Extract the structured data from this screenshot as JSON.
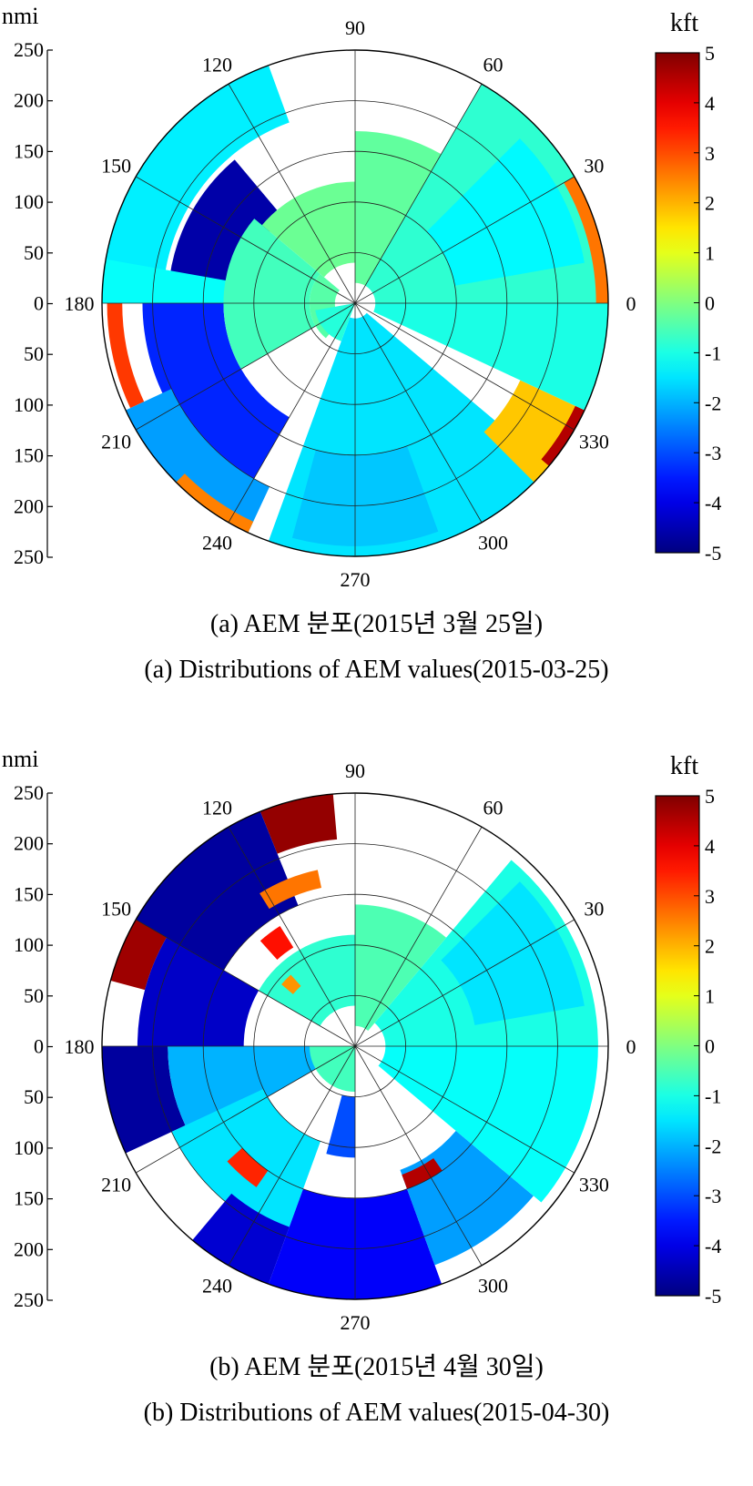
{
  "chart_data": [
    {
      "type": "heatmap",
      "subtype": "polar",
      "title": "",
      "radial_unit": "nmi",
      "radial_range": [
        0,
        250
      ],
      "radial_ticks": [
        "250",
        "200",
        "150",
        "100",
        "50",
        "0",
        "50",
        "100",
        "150",
        "200",
        "250"
      ],
      "radial_rings": [
        50,
        100,
        150,
        200,
        250
      ],
      "angle_labels": [
        "90",
        "60",
        "30",
        "0",
        "330",
        "300",
        "270",
        "240",
        "210",
        "180",
        "150",
        "120"
      ],
      "angle_values": [
        90,
        60,
        30,
        0,
        330,
        300,
        270,
        240,
        210,
        180,
        150,
        120
      ],
      "colorbar": {
        "label": "kft",
        "range": [
          -5,
          5
        ],
        "ticks": [
          "5",
          "4",
          "3",
          "2",
          "1",
          "0",
          "-1",
          "-2",
          "-3",
          "-4",
          "-5"
        ],
        "colormap": "jet"
      },
      "caption_korean": "(a) AEM 분포(2015년 3월 25일)",
      "caption_english": "(a) Distributions of AEM values(2015-03-25)",
      "sectors": [
        {
          "a0": 110,
          "a1": 178,
          "r0": 190,
          "r1": 250,
          "value": -1.4
        },
        {
          "a0": 130,
          "a1": 172,
          "r0": 110,
          "r1": 185,
          "value": -4.6
        },
        {
          "a0": 170,
          "a1": 180,
          "r0": 100,
          "r1": 250,
          "value": -1.2
        },
        {
          "a0": 180,
          "a1": 205,
          "r0": 230,
          "r1": 245,
          "value": 3.2
        },
        {
          "a0": 180,
          "a1": 240,
          "r0": 130,
          "r1": 210,
          "value": -3.4
        },
        {
          "a0": 205,
          "a1": 245,
          "r0": 200,
          "r1": 250,
          "value": -2.2
        },
        {
          "a0": 225,
          "a1": 245,
          "r0": 238,
          "r1": 250,
          "value": 2.5
        },
        {
          "a0": 140,
          "a1": 210,
          "r0": 45,
          "r1": 130,
          "value": -0.6
        },
        {
          "a0": 90,
          "a1": 140,
          "r0": 40,
          "r1": 120,
          "value": -0.2
        },
        {
          "a0": 140,
          "a1": 230,
          "r0": 20,
          "r1": 45,
          "value": -0.4
        },
        {
          "a0": 250,
          "a1": 320,
          "r0": 15,
          "r1": 250,
          "value": -1.5
        },
        {
          "a0": 255,
          "a1": 290,
          "r0": 150,
          "r1": 240,
          "value": -1.8
        },
        {
          "a0": 315,
          "a1": 335,
          "r0": 180,
          "r1": 250,
          "value": 1.8
        },
        {
          "a0": 320,
          "a1": 335,
          "r0": 240,
          "r1": 250,
          "value": 4.5
        },
        {
          "a0": 335,
          "a1": 360,
          "r0": 20,
          "r1": 250,
          "value": -1.0
        },
        {
          "a0": 0,
          "a1": 60,
          "r0": 20,
          "r1": 250,
          "value": -0.8
        },
        {
          "a0": 10,
          "a1": 45,
          "r0": 100,
          "r1": 230,
          "value": -1.3
        },
        {
          "a0": 0,
          "a1": 30,
          "r0": 238,
          "r1": 250,
          "value": 2.6
        },
        {
          "a0": 60,
          "a1": 90,
          "r0": 20,
          "r1": 170,
          "value": -0.3
        },
        {
          "a0": 190,
          "a1": 250,
          "r0": 0,
          "r1": 40,
          "value": -0.9
        }
      ]
    },
    {
      "type": "heatmap",
      "subtype": "polar",
      "title": "",
      "radial_unit": "nmi",
      "radial_range": [
        0,
        250
      ],
      "radial_ticks": [
        "250",
        "200",
        "150",
        "100",
        "50",
        "0",
        "50",
        "100",
        "150",
        "200",
        "250"
      ],
      "radial_rings": [
        50,
        100,
        150,
        200,
        250
      ],
      "angle_labels": [
        "90",
        "60",
        "30",
        "0",
        "330",
        "300",
        "270",
        "240",
        "210",
        "180",
        "150",
        "120"
      ],
      "angle_values": [
        90,
        60,
        30,
        0,
        330,
        300,
        270,
        240,
        210,
        180,
        150,
        120
      ],
      "colorbar": {
        "label": "kft",
        "range": [
          -5,
          5
        ],
        "ticks": [
          "5",
          "4",
          "3",
          "2",
          "1",
          "0",
          "-1",
          "-2",
          "-3",
          "-4",
          "-5"
        ],
        "colormap": "jet"
      },
      "caption_korean": "(b) AEM 분포(2015년 4월 30일)",
      "caption_english": "(b) Distributions of AEM values(2015-04-30)",
      "sectors": [
        {
          "a0": 95,
          "a1": 112,
          "r0": 205,
          "r1": 250,
          "value": 4.8
        },
        {
          "a0": 112,
          "a1": 150,
          "r0": 150,
          "r1": 250,
          "value": -4.7
        },
        {
          "a0": 150,
          "a1": 165,
          "r0": 215,
          "r1": 250,
          "value": 4.7
        },
        {
          "a0": 150,
          "a1": 180,
          "r0": 110,
          "r1": 215,
          "value": -4.3
        },
        {
          "a0": 180,
          "a1": 205,
          "r0": 185,
          "r1": 250,
          "value": -4.7
        },
        {
          "a0": 180,
          "a1": 210,
          "r0": 40,
          "r1": 185,
          "value": -2.0
        },
        {
          "a0": 205,
          "a1": 250,
          "r0": 100,
          "r1": 200,
          "value": -1.5
        },
        {
          "a0": 230,
          "a1": 250,
          "r0": 190,
          "r1": 250,
          "value": -4.2
        },
        {
          "a0": 250,
          "a1": 290,
          "r0": 150,
          "r1": 250,
          "value": -3.8
        },
        {
          "a0": 290,
          "a1": 320,
          "r0": 130,
          "r1": 230,
          "value": -2.2
        },
        {
          "a0": 320,
          "a1": 360,
          "r0": 30,
          "r1": 240,
          "value": -1.2
        },
        {
          "a0": 0,
          "a1": 50,
          "r0": 30,
          "r1": 240,
          "value": -1.0
        },
        {
          "a0": 10,
          "a1": 45,
          "r0": 120,
          "r1": 230,
          "value": -1.5
        },
        {
          "a0": 50,
          "a1": 90,
          "r0": 20,
          "r1": 140,
          "value": -0.5
        },
        {
          "a0": 90,
          "a1": 150,
          "r0": 40,
          "r1": 110,
          "value": -0.8
        },
        {
          "a0": 102,
          "a1": 122,
          "r0": 160,
          "r1": 178,
          "value": 2.6
        },
        {
          "a0": 122,
          "a1": 132,
          "r0": 115,
          "r1": 140,
          "value": 3.6
        },
        {
          "a0": 132,
          "a1": 140,
          "r0": 80,
          "r1": 95,
          "value": 2.3
        },
        {
          "a0": 222,
          "a1": 235,
          "r0": 150,
          "r1": 170,
          "value": 3.4
        },
        {
          "a0": 180,
          "a1": 270,
          "r0": 0,
          "r1": 45,
          "value": -0.6
        },
        {
          "a0": 290,
          "a1": 305,
          "r0": 135,
          "r1": 150,
          "value": 4.5
        },
        {
          "a0": 255,
          "a1": 270,
          "r0": 50,
          "r1": 110,
          "value": -3.0
        }
      ]
    }
  ]
}
